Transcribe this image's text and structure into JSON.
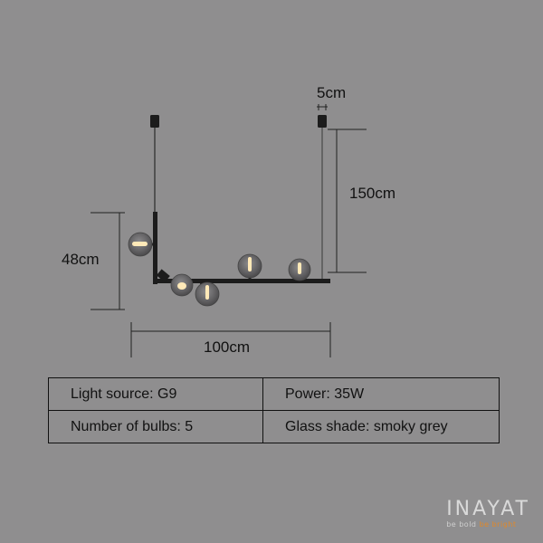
{
  "dimensions": {
    "width": "100cm",
    "height": "48cm",
    "drop": "150cm",
    "cable": "5cm"
  },
  "specs": [
    [
      {
        "label": "Light source: G9"
      },
      {
        "label": "Power: 35W"
      }
    ],
    [
      {
        "label": "Number of bulbs: 5"
      },
      {
        "label": "Glass shade: smoky grey"
      }
    ]
  ],
  "brand": {
    "name": "INAYAT",
    "tagline_start": "be bold",
    "tagline_accent": "be bright"
  },
  "colors": {
    "background": "#8f8e8f",
    "fixture": "#1c1c1c",
    "glass": "#6b6a6c",
    "filament": "#ffe9b8",
    "accent": "#e0882a"
  }
}
